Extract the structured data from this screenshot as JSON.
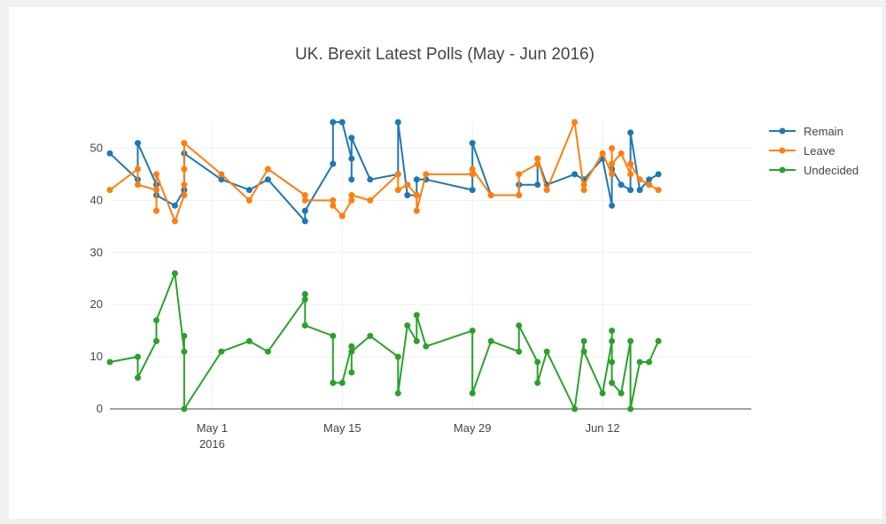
{
  "chart_data": {
    "type": "line",
    "title": "UK. Brexit Latest Polls (May - Jun 2016)",
    "xlabel": "",
    "ylabel": "",
    "x_date_range": [
      "2016-04-20",
      "2016-06-28"
    ],
    "ylim": [
      0,
      55
    ],
    "y_ticks": [
      0,
      10,
      20,
      30,
      40,
      50
    ],
    "x_ticks": [
      {
        "date": "2016-05-01",
        "label": "May 1",
        "sublabel": "2016"
      },
      {
        "date": "2016-05-15",
        "label": "May 15",
        "sublabel": ""
      },
      {
        "date": "2016-05-29",
        "label": "May 29",
        "sublabel": ""
      },
      {
        "date": "2016-06-12",
        "label": "Jun 12",
        "sublabel": ""
      }
    ],
    "grid": true,
    "legend_position": "top-right",
    "series": [
      {
        "name": "Remain",
        "color": "#1f77b4",
        "points": [
          [
            "2016-04-20",
            49
          ],
          [
            "2016-04-23",
            44
          ],
          [
            "2016-04-23",
            51
          ],
          [
            "2016-04-25",
            43
          ],
          [
            "2016-04-25",
            41
          ],
          [
            "2016-04-27",
            39
          ],
          [
            "2016-04-28",
            42
          ],
          [
            "2016-04-28",
            49
          ],
          [
            "2016-05-02",
            44
          ],
          [
            "2016-05-05",
            42
          ],
          [
            "2016-05-07",
            44
          ],
          [
            "2016-05-11",
            36
          ],
          [
            "2016-05-11",
            38
          ],
          [
            "2016-05-14",
            47
          ],
          [
            "2016-05-14",
            55
          ],
          [
            "2016-05-15",
            55
          ],
          [
            "2016-05-16",
            48
          ],
          [
            "2016-05-16",
            44
          ],
          [
            "2016-05-16",
            52
          ],
          [
            "2016-05-18",
            44
          ],
          [
            "2016-05-21",
            45
          ],
          [
            "2016-05-21",
            55
          ],
          [
            "2016-05-22",
            41
          ],
          [
            "2016-05-23",
            41
          ],
          [
            "2016-05-23",
            44
          ],
          [
            "2016-05-24",
            44
          ],
          [
            "2016-05-29",
            42
          ],
          [
            "2016-05-29",
            51
          ],
          [
            "2016-05-31",
            41
          ],
          [
            "2016-06-03",
            41
          ],
          [
            "2016-06-03",
            43
          ],
          [
            "2016-06-05",
            43
          ],
          [
            "2016-06-05",
            48
          ],
          [
            "2016-06-06",
            43
          ],
          [
            "2016-06-09",
            45
          ],
          [
            "2016-06-10",
            44
          ],
          [
            "2016-06-12",
            48
          ],
          [
            "2016-06-13",
            39
          ],
          [
            "2016-06-13",
            46
          ],
          [
            "2016-06-14",
            43
          ],
          [
            "2016-06-15",
            42
          ],
          [
            "2016-06-15",
            53
          ],
          [
            "2016-06-16",
            42
          ],
          [
            "2016-06-17",
            44
          ],
          [
            "2016-06-18",
            45
          ]
        ]
      },
      {
        "name": "Leave",
        "color": "#ff7f0e",
        "points": [
          [
            "2016-04-20",
            42
          ],
          [
            "2016-04-23",
            46
          ],
          [
            "2016-04-23",
            43
          ],
          [
            "2016-04-25",
            42
          ],
          [
            "2016-04-25",
            38
          ],
          [
            "2016-04-25",
            45
          ],
          [
            "2016-04-27",
            36
          ],
          [
            "2016-04-28",
            41
          ],
          [
            "2016-04-28",
            43
          ],
          [
            "2016-04-28",
            46
          ],
          [
            "2016-04-28",
            51
          ],
          [
            "2016-05-02",
            45
          ],
          [
            "2016-05-05",
            40
          ],
          [
            "2016-05-07",
            46
          ],
          [
            "2016-05-11",
            41
          ],
          [
            "2016-05-11",
            40
          ],
          [
            "2016-05-14",
            40
          ],
          [
            "2016-05-14",
            39
          ],
          [
            "2016-05-15",
            37
          ],
          [
            "2016-05-16",
            40
          ],
          [
            "2016-05-16",
            41
          ],
          [
            "2016-05-18",
            40
          ],
          [
            "2016-05-21",
            45
          ],
          [
            "2016-05-21",
            42
          ],
          [
            "2016-05-22",
            43
          ],
          [
            "2016-05-23",
            41
          ],
          [
            "2016-05-23",
            38
          ],
          [
            "2016-05-24",
            45
          ],
          [
            "2016-05-29",
            45
          ],
          [
            "2016-05-29",
            46
          ],
          [
            "2016-05-31",
            41
          ],
          [
            "2016-06-03",
            41
          ],
          [
            "2016-06-03",
            45
          ],
          [
            "2016-06-05",
            47
          ],
          [
            "2016-06-05",
            48
          ],
          [
            "2016-06-06",
            42
          ],
          [
            "2016-06-09",
            55
          ],
          [
            "2016-06-10",
            42
          ],
          [
            "2016-06-10",
            43
          ],
          [
            "2016-06-12",
            49
          ],
          [
            "2016-06-13",
            45
          ],
          [
            "2016-06-13",
            50
          ],
          [
            "2016-06-13",
            47
          ],
          [
            "2016-06-14",
            49
          ],
          [
            "2016-06-15",
            45
          ],
          [
            "2016-06-15",
            47
          ],
          [
            "2016-06-16",
            44
          ],
          [
            "2016-06-17",
            43
          ],
          [
            "2016-06-18",
            42
          ]
        ]
      },
      {
        "name": "Undecided",
        "color": "#2ca02c",
        "points": [
          [
            "2016-04-20",
            9
          ],
          [
            "2016-04-23",
            10
          ],
          [
            "2016-04-23",
            6
          ],
          [
            "2016-04-25",
            13
          ],
          [
            "2016-04-25",
            17
          ],
          [
            "2016-04-27",
            26
          ],
          [
            "2016-04-28",
            11
          ],
          [
            "2016-04-28",
            14
          ],
          [
            "2016-04-28",
            0
          ],
          [
            "2016-05-02",
            11
          ],
          [
            "2016-05-05",
            13
          ],
          [
            "2016-05-07",
            11
          ],
          [
            "2016-05-11",
            21
          ],
          [
            "2016-05-11",
            22
          ],
          [
            "2016-05-11",
            16
          ],
          [
            "2016-05-14",
            14
          ],
          [
            "2016-05-14",
            5
          ],
          [
            "2016-05-15",
            5
          ],
          [
            "2016-05-16",
            12
          ],
          [
            "2016-05-16",
            7
          ],
          [
            "2016-05-16",
            11
          ],
          [
            "2016-05-18",
            14
          ],
          [
            "2016-05-21",
            10
          ],
          [
            "2016-05-21",
            3
          ],
          [
            "2016-05-22",
            16
          ],
          [
            "2016-05-23",
            13
          ],
          [
            "2016-05-23",
            18
          ],
          [
            "2016-05-24",
            12
          ],
          [
            "2016-05-29",
            15
          ],
          [
            "2016-05-29",
            3
          ],
          [
            "2016-05-31",
            13
          ],
          [
            "2016-06-03",
            11
          ],
          [
            "2016-06-03",
            16
          ],
          [
            "2016-06-05",
            9
          ],
          [
            "2016-06-05",
            5
          ],
          [
            "2016-06-06",
            11
          ],
          [
            "2016-06-09",
            0
          ],
          [
            "2016-06-10",
            13
          ],
          [
            "2016-06-10",
            11
          ],
          [
            "2016-06-12",
            3
          ],
          [
            "2016-06-13",
            13
          ],
          [
            "2016-06-13",
            15
          ],
          [
            "2016-06-13",
            9
          ],
          [
            "2016-06-13",
            5
          ],
          [
            "2016-06-14",
            3
          ],
          [
            "2016-06-15",
            13
          ],
          [
            "2016-06-15",
            0
          ],
          [
            "2016-06-16",
            9
          ],
          [
            "2016-06-17",
            9
          ],
          [
            "2016-06-18",
            13
          ]
        ]
      }
    ]
  }
}
